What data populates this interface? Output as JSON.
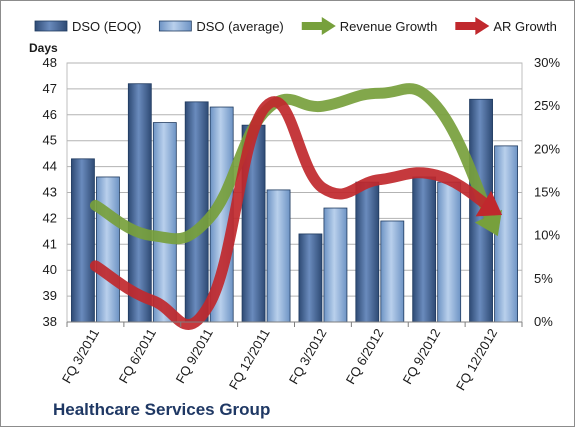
{
  "chart_data": {
    "type": "bar",
    "title": "Healthcare Services Group",
    "ylabel": "Days",
    "categories": [
      "FQ 3/2011",
      "FQ 6/2011",
      "FQ 9/2011",
      "FQ 12/2011",
      "FQ 3/2012",
      "FQ 6/2012",
      "FQ 9/2012",
      "FQ 12/2012"
    ],
    "ylim": [
      38,
      48
    ],
    "yticks": [
      38,
      39,
      40,
      41,
      42,
      43,
      44,
      45,
      46,
      47,
      48
    ],
    "y2lim": [
      0,
      30
    ],
    "y2ticks": [
      "0%",
      "5%",
      "10%",
      "15%",
      "20%",
      "25%",
      "30%"
    ],
    "grid": true,
    "legend_position": "top",
    "series": [
      {
        "name": "DSO (EOQ)",
        "type": "bar",
        "axis": "left",
        "color": "#4a6a9a",
        "values": [
          44.3,
          47.2,
          46.5,
          45.6,
          41.4,
          43.4,
          43.6,
          46.6
        ]
      },
      {
        "name": "DSO (average)",
        "type": "bar",
        "axis": "left",
        "color": "#8fb0d8",
        "values": [
          43.6,
          45.7,
          46.3,
          43.1,
          42.4,
          41.9,
          43.4,
          44.8
        ]
      },
      {
        "name": "Revenue Growth",
        "type": "line",
        "axis": "right",
        "unit": "%",
        "color": "#77a03c",
        "values": [
          13.5,
          10,
          12,
          24.5,
          25,
          26.5,
          25,
          11
        ]
      },
      {
        "name": "AR Growth",
        "type": "line",
        "axis": "right",
        "unit": "%",
        "color": "#c0282d",
        "values": [
          6.5,
          2.5,
          2,
          25,
          15.5,
          16.5,
          17,
          13
        ]
      }
    ]
  }
}
